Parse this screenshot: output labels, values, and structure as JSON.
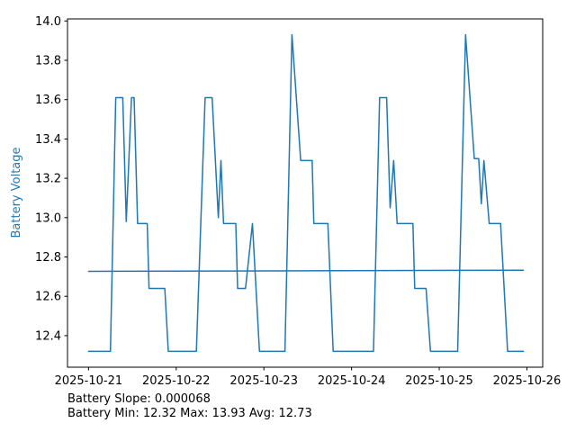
{
  "figure": {
    "background": "#ffffff",
    "accent_color": "#1f77b4",
    "footer": {
      "slope_line": "Battery Slope: 0.000068",
      "stats_line": "Battery Min: 12.32 Max: 13.93 Avg: 12.73"
    }
  },
  "chart_data": {
    "type": "line",
    "title": "",
    "xlabel": "",
    "ylabel": "Battery Voltage",
    "ylabel_color": "#1f77b4",
    "grid": false,
    "legend": null,
    "x_unit_note": "days since 2025-10-21",
    "xlim": [
      -0.24,
      5.18
    ],
    "ylim": [
      12.2395,
      14.0105
    ],
    "x_ticks": [
      {
        "value": 0,
        "label": "2025-10-21"
      },
      {
        "value": 1,
        "label": "2025-10-22"
      },
      {
        "value": 2,
        "label": "2025-10-23"
      },
      {
        "value": 3,
        "label": "2025-10-24"
      },
      {
        "value": 4,
        "label": "2025-10-25"
      },
      {
        "value": 5,
        "label": "2025-10-26"
      }
    ],
    "y_ticks": [
      {
        "value": 12.4,
        "label": "12.4"
      },
      {
        "value": 12.6,
        "label": "12.6"
      },
      {
        "value": 12.8,
        "label": "12.8"
      },
      {
        "value": 13.0,
        "label": "13.0"
      },
      {
        "value": 13.2,
        "label": "13.2"
      },
      {
        "value": 13.4,
        "label": "13.4"
      },
      {
        "value": 13.6,
        "label": "13.6"
      },
      {
        "value": 13.8,
        "label": "13.8"
      },
      {
        "value": 14.0,
        "label": "14.0"
      }
    ],
    "series": [
      {
        "name": "battery_voltage",
        "color": "#1f77b4",
        "width": 1.5,
        "points": [
          [
            0.0,
            12.32
          ],
          [
            0.25,
            12.32
          ],
          [
            0.31,
            13.61
          ],
          [
            0.39,
            13.61
          ],
          [
            0.43,
            12.98
          ],
          [
            0.49,
            13.61
          ],
          [
            0.52,
            13.61
          ],
          [
            0.56,
            12.97
          ],
          [
            0.67,
            12.97
          ],
          [
            0.69,
            12.64
          ],
          [
            0.87,
            12.64
          ],
          [
            0.91,
            12.32
          ],
          [
            1.23,
            12.32
          ],
          [
            1.33,
            13.61
          ],
          [
            1.41,
            13.61
          ],
          [
            1.48,
            13.0
          ],
          [
            1.51,
            13.29
          ],
          [
            1.54,
            12.97
          ],
          [
            1.68,
            12.97
          ],
          [
            1.7,
            12.64
          ],
          [
            1.79,
            12.64
          ],
          [
            1.87,
            12.97
          ],
          [
            1.95,
            12.32
          ],
          [
            2.24,
            12.32
          ],
          [
            2.32,
            13.93
          ],
          [
            2.42,
            13.29
          ],
          [
            2.55,
            13.29
          ],
          [
            2.57,
            12.97
          ],
          [
            2.73,
            12.97
          ],
          [
            2.79,
            12.32
          ],
          [
            3.25,
            12.32
          ],
          [
            3.32,
            13.61
          ],
          [
            3.4,
            13.61
          ],
          [
            3.44,
            13.05
          ],
          [
            3.48,
            13.29
          ],
          [
            3.52,
            12.97
          ],
          [
            3.7,
            12.97
          ],
          [
            3.72,
            12.64
          ],
          [
            3.85,
            12.64
          ],
          [
            3.9,
            12.32
          ],
          [
            4.21,
            12.32
          ],
          [
            4.3,
            13.93
          ],
          [
            4.4,
            13.3
          ],
          [
            4.45,
            13.3
          ],
          [
            4.48,
            13.07
          ],
          [
            4.51,
            13.29
          ],
          [
            4.57,
            12.97
          ],
          [
            4.7,
            12.97
          ],
          [
            4.78,
            12.32
          ],
          [
            4.96,
            12.32
          ]
        ]
      },
      {
        "name": "trend_line",
        "color": "#1f77b4",
        "width": 1.5,
        "points": [
          [
            0.0,
            12.727
          ],
          [
            4.96,
            12.733
          ]
        ]
      }
    ],
    "stats": {
      "slope": "0.000068",
      "min": "12.32",
      "max": "13.93",
      "avg": "12.73"
    }
  }
}
